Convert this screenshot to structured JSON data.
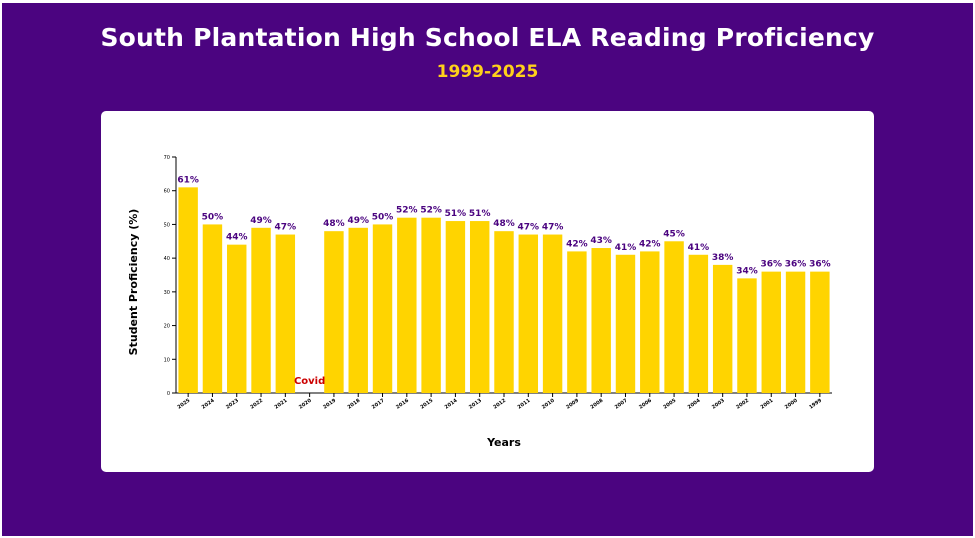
{
  "header": {
    "title": "South Plantation High School ELA Reading Proficiency",
    "subtitle": "1999-2025"
  },
  "colors": {
    "background": "#4b0480",
    "bar": "#ffd400",
    "label": "#4b0480",
    "note": "#cc0000",
    "subtitle": "#ffd11a"
  },
  "chart_data": {
    "type": "bar",
    "title": "South Plantation High School ELA Reading Proficiency",
    "subtitle": "1999-2025",
    "xlabel": "Years",
    "ylabel": "Student Proficiency (%)",
    "ylim": [
      0,
      70
    ],
    "yticks": [
      0,
      10,
      20,
      30,
      40,
      50,
      60,
      70
    ],
    "grid": false,
    "categories": [
      "2025",
      "2024",
      "2023",
      "2022",
      "2021",
      "2020",
      "2019",
      "2018",
      "2017",
      "2016",
      "2015",
      "2014",
      "2013",
      "2012",
      "2011",
      "2010",
      "2009",
      "2008",
      "2007",
      "2006",
      "2005",
      "2004",
      "2003",
      "2002",
      "2001",
      "2000",
      "1999"
    ],
    "values": [
      61,
      50,
      44,
      49,
      47,
      null,
      48,
      49,
      50,
      52,
      52,
      51,
      51,
      48,
      47,
      47,
      42,
      43,
      41,
      42,
      45,
      41,
      38,
      34,
      36,
      36,
      36
    ],
    "data_labels": [
      "61%",
      "50%",
      "44%",
      "49%",
      "47%",
      "",
      "48%",
      "49%",
      "50%",
      "52%",
      "52%",
      "51%",
      "51%",
      "48%",
      "47%",
      "47%",
      "42%",
      "43%",
      "41%",
      "42%",
      "45%",
      "41%",
      "38%",
      "34%",
      "36%",
      "36%",
      "36%"
    ],
    "annotations": [
      {
        "category": "2020",
        "text": "Covid"
      }
    ]
  }
}
